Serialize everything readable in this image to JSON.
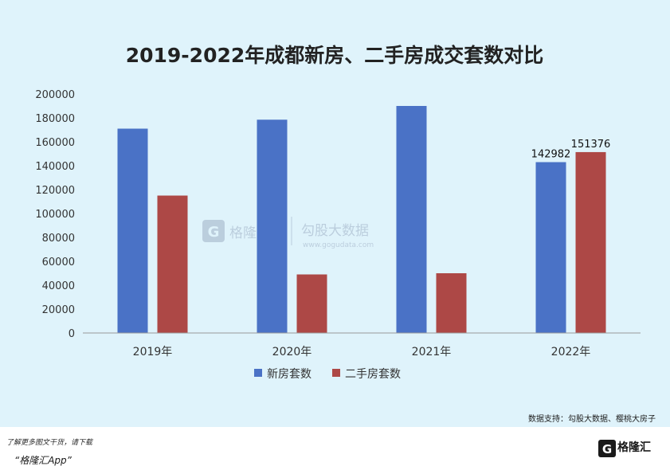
{
  "chart_data": {
    "type": "bar",
    "title": "2019-2022年成都新房、二手房成交套数对比",
    "categories": [
      "2019年",
      "2020年",
      "2021年",
      "2022年"
    ],
    "series": [
      {
        "name": "新房套数",
        "color": "#4a72c6",
        "values": [
          171000,
          178500,
          190000,
          142982
        ]
      },
      {
        "name": "二手房套数",
        "color": "#ad4846",
        "values": [
          115000,
          49000,
          50000,
          151376
        ]
      }
    ],
    "data_labels": [
      {
        "series": 0,
        "index": 3,
        "text": "142982"
      },
      {
        "series": 1,
        "index": 3,
        "text": "151376"
      }
    ],
    "ylim": [
      0,
      200000
    ],
    "yticks": [
      0,
      20000,
      40000,
      60000,
      80000,
      100000,
      120000,
      140000,
      160000,
      180000,
      200000
    ],
    "legend_position": "bottom-center",
    "grid": false
  },
  "watermark": {
    "brand": "格隆汇",
    "brand2": "勾股大数据",
    "url": "www.gogudata.com"
  },
  "source_text": "数据支持：勾股大数据、樱桃大房子",
  "promo": {
    "line1": "了解更多图文干货，请下载",
    "line2": "“格隆汇App”"
  },
  "brand_logo_text": "格隆汇"
}
